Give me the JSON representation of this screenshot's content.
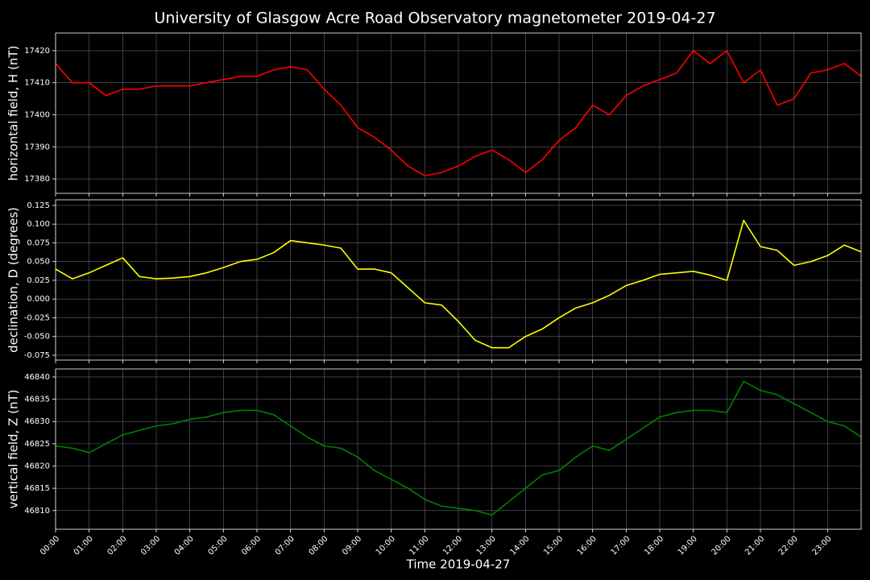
{
  "title": "University of Glasgow Acre Road Observatory magnetometer 2019-04-27",
  "x_axis": {
    "label": "Time 2019-04-27",
    "xlim": [
      "00:00",
      "24:00"
    ],
    "xticks": [
      "00:00",
      "01:00",
      "02:00",
      "03:00",
      "04:00",
      "05:00",
      "06:00",
      "07:00",
      "08:00",
      "09:00",
      "10:00",
      "11:00",
      "12:00",
      "13:00",
      "14:00",
      "15:00",
      "16:00",
      "17:00",
      "18:00",
      "19:00",
      "20:00",
      "21:00",
      "22:00",
      "23:00"
    ],
    "grid": true
  },
  "x": [
    "00:00",
    "00:30",
    "01:00",
    "01:30",
    "02:00",
    "02:30",
    "03:00",
    "03:30",
    "04:00",
    "04:30",
    "05:00",
    "05:30",
    "06:00",
    "06:30",
    "07:00",
    "07:30",
    "08:00",
    "08:30",
    "09:00",
    "09:30",
    "10:00",
    "10:30",
    "11:00",
    "11:30",
    "12:00",
    "12:30",
    "13:00",
    "13:30",
    "14:00",
    "14:30",
    "15:00",
    "15:30",
    "16:00",
    "16:30",
    "17:00",
    "17:30",
    "18:00",
    "18:30",
    "19:00",
    "19:30",
    "20:00",
    "20:30",
    "21:00",
    "21:30",
    "22:00",
    "22:30",
    "23:00",
    "23:30",
    "24:00"
  ],
  "chart_data": [
    {
      "type": "line",
      "ylabel": "horizontal field, H (nT)",
      "color": "#ff0000",
      "grid": true,
      "ylim": [
        17375.5,
        17425.5
      ],
      "yticks": [
        17380,
        17390,
        17400,
        17410,
        17420
      ],
      "values": [
        17416,
        17410,
        17410,
        17406,
        17408,
        17408,
        17409,
        17409,
        17409,
        17410,
        17411,
        17412,
        17412,
        17414,
        17415,
        17414,
        17408,
        17403,
        17396,
        17393,
        17389,
        17384,
        17381,
        17382,
        17384,
        17387,
        17389,
        17386,
        17382,
        17386,
        17392,
        17396,
        17403,
        17400,
        17406,
        17409,
        17411,
        17413,
        17420,
        17416,
        17420,
        17410,
        17414,
        17403,
        17405,
        17413,
        17414,
        17416,
        17412
      ]
    },
    {
      "type": "line",
      "ylabel": "declination, D (degrees)",
      "color": "#ffff00",
      "grid": true,
      "ylim": [
        -0.0815,
        0.1325
      ],
      "yticks": [
        -0.075,
        {
          "value": -0.05,
          "label": "-0.050"
        },
        -0.025,
        {
          "value": 0,
          "label": "0.000"
        },
        0.025,
        {
          "value": 0.05,
          "label": "0.050"
        },
        0.075,
        {
          "value": 0.1,
          "label": "0.100"
        },
        0.125
      ],
      "values": [
        0.04,
        0.027,
        0.035,
        0.045,
        0.055,
        0.03,
        0.027,
        0.028,
        0.03,
        0.035,
        0.042,
        0.05,
        0.053,
        0.062,
        0.078,
        0.075,
        0.072,
        0.068,
        0.04,
        0.04,
        0.035,
        0.015,
        -0.005,
        -0.008,
        -0.03,
        -0.055,
        -0.065,
        -0.065,
        -0.05,
        -0.04,
        -0.025,
        -0.012,
        -0.005,
        0.005,
        0.018,
        0.025,
        0.033,
        0.035,
        0.037,
        0.032,
        0.025,
        0.105,
        0.07,
        0.065,
        0.045,
        0.05,
        0.058,
        0.072,
        0.063
      ]
    },
    {
      "type": "line",
      "ylabel": "vertical field, Z (nT)",
      "color": "#008000",
      "grid": true,
      "ylim": [
        46805.8,
        46841.8
      ],
      "yticks": [
        46810,
        46815,
        46820,
        46825,
        46830,
        46835,
        46840
      ],
      "values": [
        46824.5,
        46824,
        46823,
        46825,
        46827,
        46828,
        46829,
        46829.5,
        46830.5,
        46831,
        46832,
        46832.5,
        46832.5,
        46831.5,
        46829,
        46826.5,
        46824.5,
        46824,
        46822,
        46819,
        46817,
        46815,
        46812.5,
        46811,
        46810.5,
        46810,
        46809,
        46812,
        46815,
        46818,
        46819,
        46822,
        46824.5,
        46823.5,
        46826,
        46828.5,
        46831,
        46832,
        46832.5,
        46832.5,
        46832,
        46839,
        46837,
        46836,
        46834,
        46832,
        46830,
        46829,
        46826.5
      ]
    }
  ]
}
